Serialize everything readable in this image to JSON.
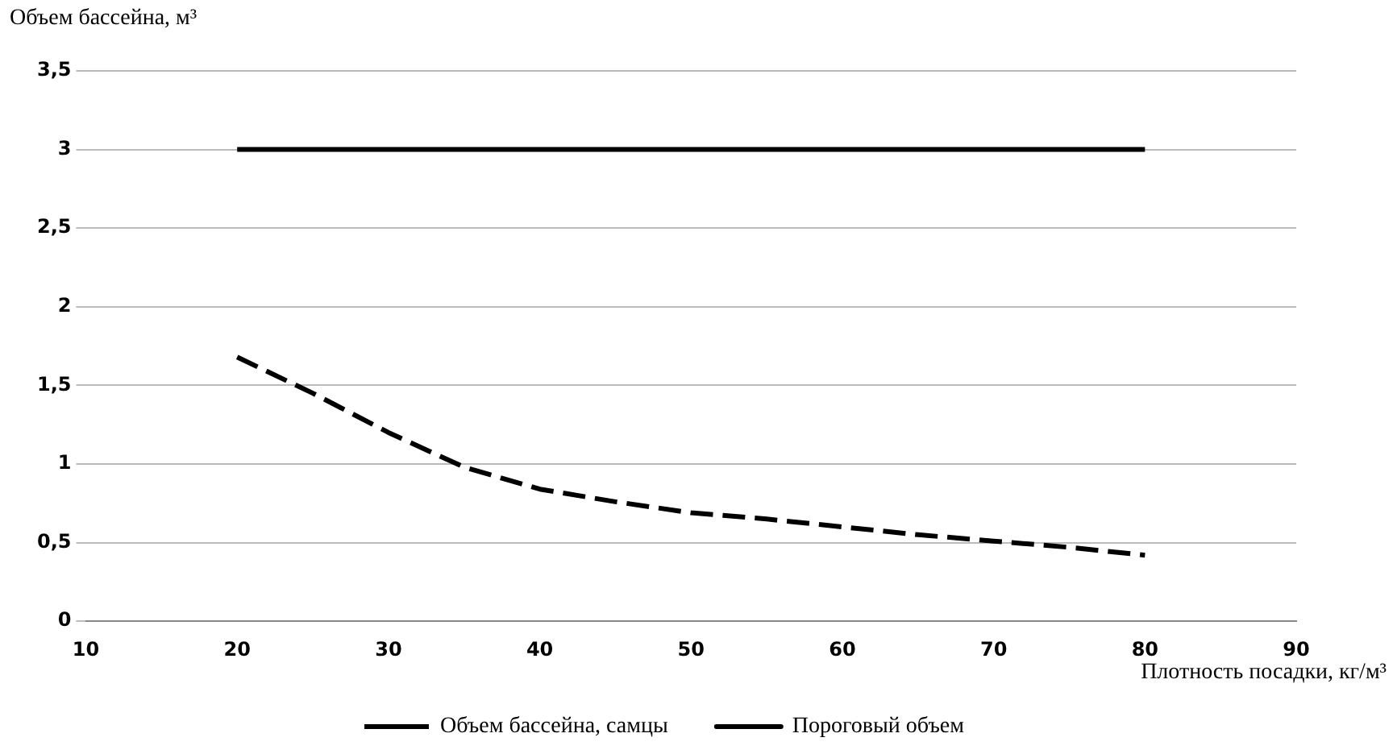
{
  "chart_data": {
    "type": "line",
    "xlabel": "Плотность посадки, кг/м³",
    "ylabel": "Объем бассейна, м³",
    "xlim": [
      10,
      90
    ],
    "xticks": [
      10,
      20,
      30,
      40,
      50,
      60,
      70,
      80,
      90
    ],
    "ylim": [
      0,
      3.5
    ],
    "yticks": [
      0,
      {
        "value": 0.5,
        "label": "0,5"
      },
      1,
      {
        "value": 1.5,
        "label": "1,5"
      },
      2,
      {
        "value": 2.5,
        "label": "2,5"
      },
      3,
      {
        "value": 3.5,
        "label": "3,5"
      }
    ],
    "grid": "y",
    "legend": "bottom",
    "marker": "none",
    "series": [
      {
        "name": "Объем бассейна, самцы",
        "color": "#000000",
        "line_style": "dashed",
        "x": [
          20,
          25,
          30,
          35,
          40,
          45,
          50,
          55,
          60,
          65,
          70,
          75,
          80
        ],
        "values": [
          1.68,
          1.45,
          1.2,
          0.98,
          0.84,
          0.76,
          0.69,
          0.65,
          0.6,
          0.55,
          0.51,
          0.47,
          0.42
        ]
      },
      {
        "name": "Пороговый объем",
        "color": "#000000",
        "line_style": "solid",
        "x": [
          20,
          80
        ],
        "values": [
          3,
          3
        ]
      }
    ]
  }
}
